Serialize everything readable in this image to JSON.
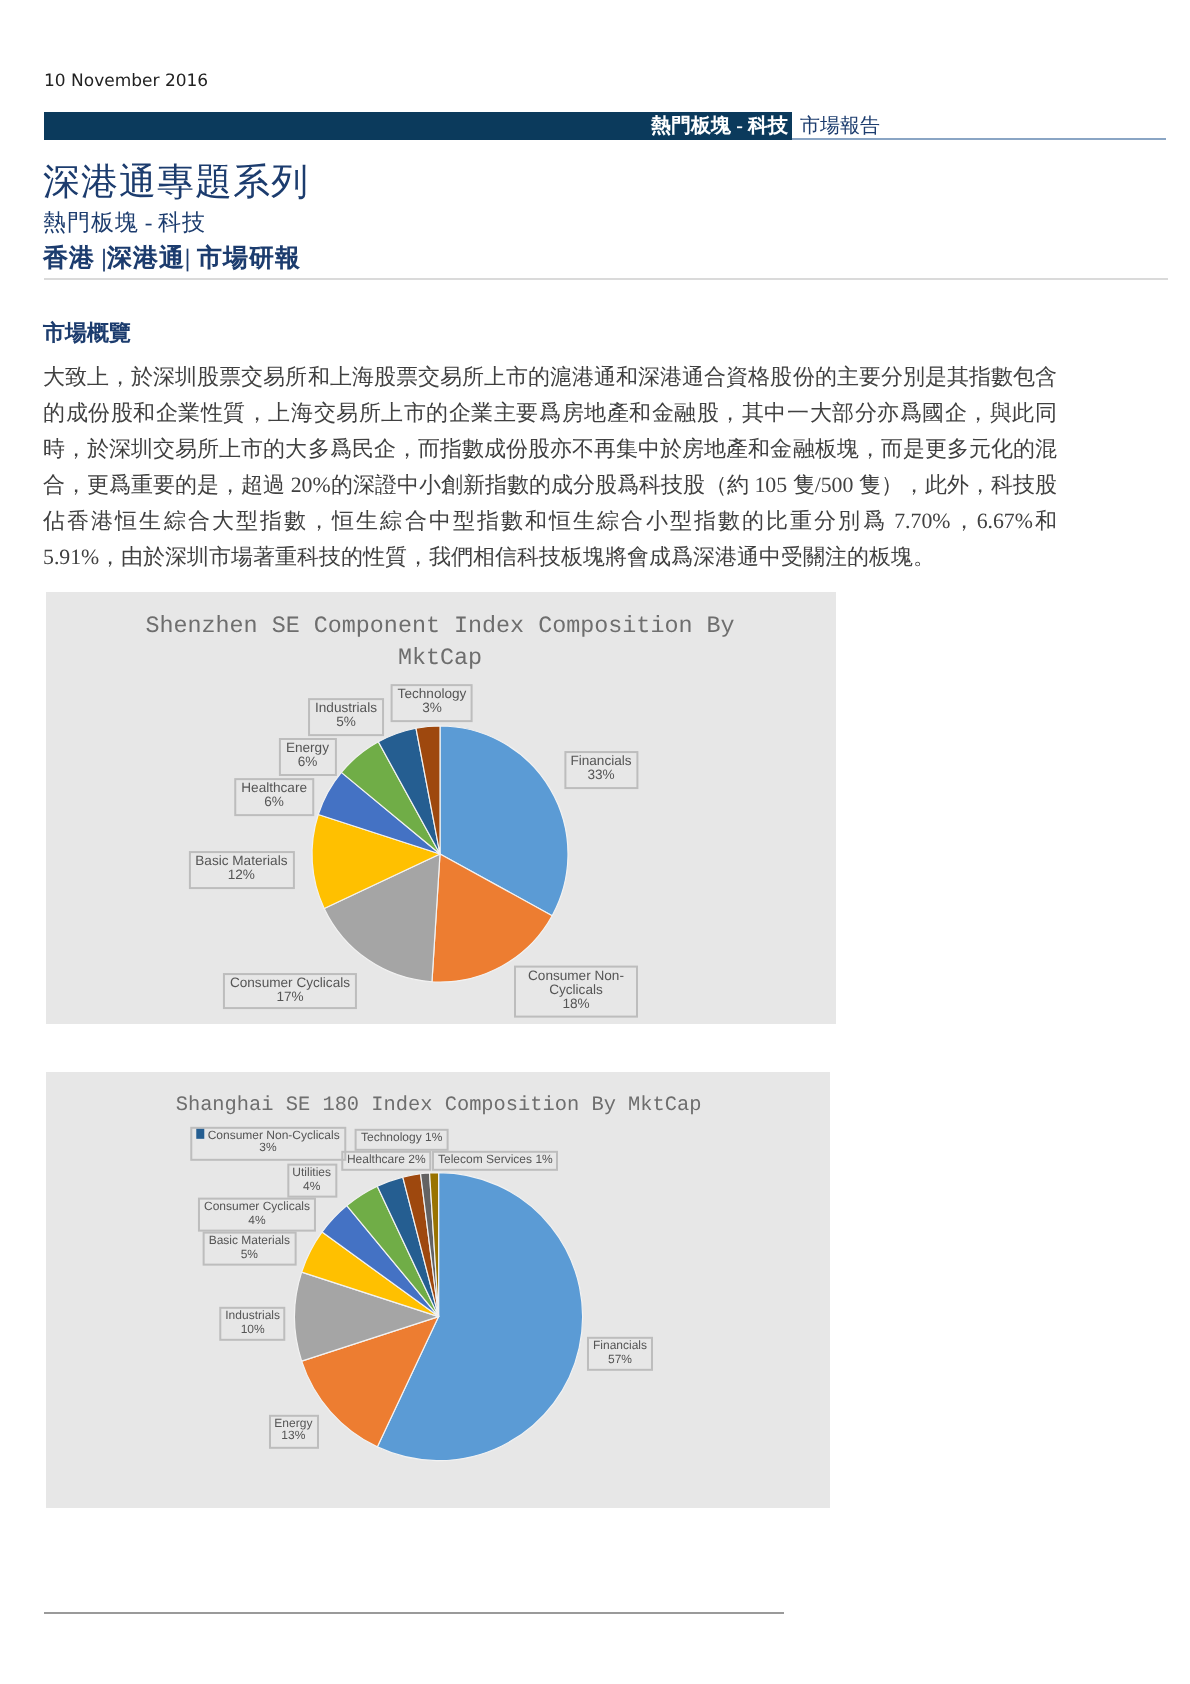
{
  "chart_data": [
    {
      "type": "pie",
      "title": "Shenzhen SE Component Index Composition By MktCap",
      "annotations": [
        "10 November 2016",
        "熱門板塊 - 科技",
        "市場報告",
        "深港通專題系列",
        "熱門板塊 - 科技",
        "香港 |深港通| 市場研報",
        "市場概覽",
        "大致上，於深圳股票交易所和上海股票交易所上市的滬港通和深港通合資格股份的主要分別是其指數包含的成份股和企業性質，上海交易所上市的企業主要爲房地產和金融股，其中一大部分亦爲國企，與此同時，於深圳交易所上市的大多爲民企，而指數成份股亦不再集中於房地產和金融板塊，而是更多元化的混合，更爲重要的是，超過 20%的深證中小創新指數的成分股爲科技股（約 105 隻/500 隻），此外，科技股佔香港恒生綜合大型指數，恒生綜合中型指數和恒生綜合小型指數的比重分別爲 7.70%，6.67%和 5.91%，由於深圳市場著重科技的性質，我們相信科技板塊將會成爲深港通中受關注的板塊。"
      ],
      "categories": [
        "Financials",
        "Consumer Non-Cyclicals",
        "Consumer Cyclicals",
        "Basic Materials",
        "Healthcare",
        "Energy",
        "Industrials",
        "Technology"
      ],
      "values": [
        33,
        18,
        17,
        12,
        6,
        6,
        5,
        3
      ],
      "value_labels": [
        "33%",
        "18%",
        "17%",
        "12%",
        "6%",
        "6%",
        "5%",
        "3%"
      ],
      "colors": [
        "#5b9bd5",
        "#ed7d31",
        "#a5a5a5",
        "#ffc000",
        "#4472c4",
        "#70ad47",
        "#255e91",
        "#9e480e"
      ]
    },
    {
      "type": "pie",
      "title": "Shanghai SE 180 Index Composition By MktCap",
      "categories": [
        "Financials",
        "Energy",
        "Industrials",
        "Basic Materials",
        "Consumer Cyclicals",
        "Utilities",
        "Consumer Non-Cyclicals",
        "Healthcare",
        "Technology",
        "Telecom Services"
      ],
      "values": [
        57,
        13,
        10,
        5,
        4,
        4,
        3,
        2,
        1,
        1
      ],
      "value_labels": [
        "57%",
        "13%",
        "10%",
        "5%",
        "4%",
        "4%",
        "3%",
        "2%",
        "1%",
        "1%"
      ],
      "colors": [
        "#5b9bd5",
        "#ed7d31",
        "#a5a5a5",
        "#ffc000",
        "#4472c4",
        "#70ad47",
        "#255e91",
        "#9e480e",
        "#636363",
        "#997300"
      ]
    }
  ]
}
